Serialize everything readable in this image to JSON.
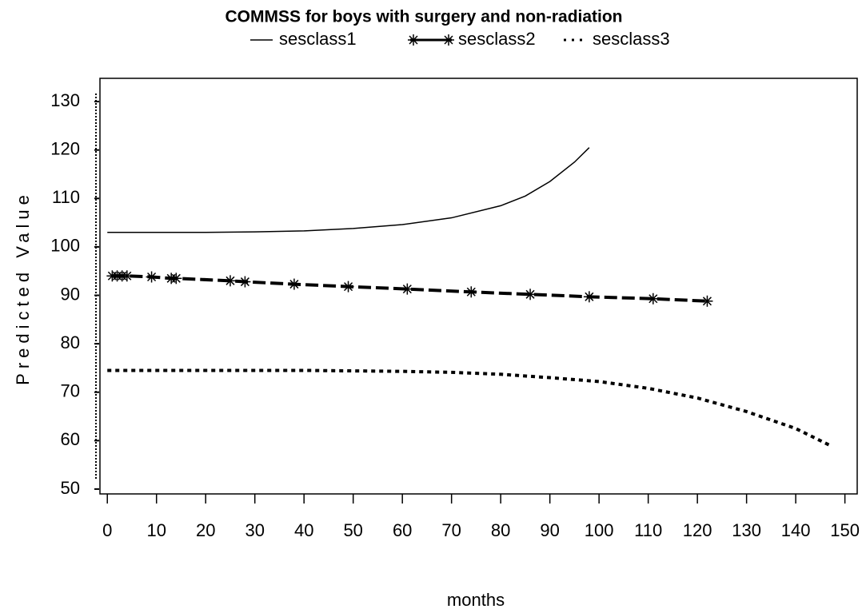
{
  "chart_data": {
    "type": "line",
    "title": "COMMSS for boys with surgery and non-radiation",
    "x_label": "months",
    "y_label": "Predicted Value",
    "xlim": [
      -1.5,
      152.5
    ],
    "xticks": [
      0,
      10,
      20,
      30,
      40,
      50,
      60,
      70,
      80,
      90,
      100,
      110,
      120,
      130,
      140,
      150
    ],
    "ylim": [
      49,
      134.8
    ],
    "yticks": [
      50,
      60,
      70,
      80,
      90,
      100,
      110,
      120,
      130
    ],
    "series": [
      {
        "name": "sesclass1",
        "color": "#000000",
        "line_style": "solid",
        "marker": "none",
        "x": [
          0,
          10,
          20,
          30,
          40,
          50,
          60,
          70,
          80,
          85,
          90,
          95,
          98
        ],
        "values": [
          103,
          103,
          103,
          103.1,
          103.3,
          103.8,
          104.6,
          106,
          108.5,
          110.5,
          113.5,
          117.5,
          120.5
        ]
      },
      {
        "name": "sesclass2",
        "color": "#000000",
        "line_style": "dashed",
        "marker": "star",
        "x": [
          1,
          2,
          3,
          4,
          9,
          13,
          14,
          25,
          28,
          38,
          49,
          61,
          74,
          86,
          98,
          111,
          122
        ],
        "values": [
          94,
          94,
          94,
          94,
          93.8,
          93.5,
          93.5,
          93,
          92.8,
          92.3,
          91.8,
          91.3,
          90.7,
          90.2,
          89.7,
          89.3,
          88.8
        ]
      },
      {
        "name": "sesclass3",
        "color": "#000000",
        "line_style": "dotted",
        "marker": "none",
        "x": [
          0,
          10,
          20,
          30,
          40,
          50,
          60,
          70,
          80,
          90,
          100,
          110,
          120,
          130,
          140,
          147
        ],
        "values": [
          74.5,
          74.5,
          74.5,
          74.5,
          74.5,
          74.4,
          74.3,
          74.1,
          73.7,
          73,
          72.2,
          70.8,
          68.8,
          66,
          62.5,
          59
        ]
      }
    ]
  }
}
